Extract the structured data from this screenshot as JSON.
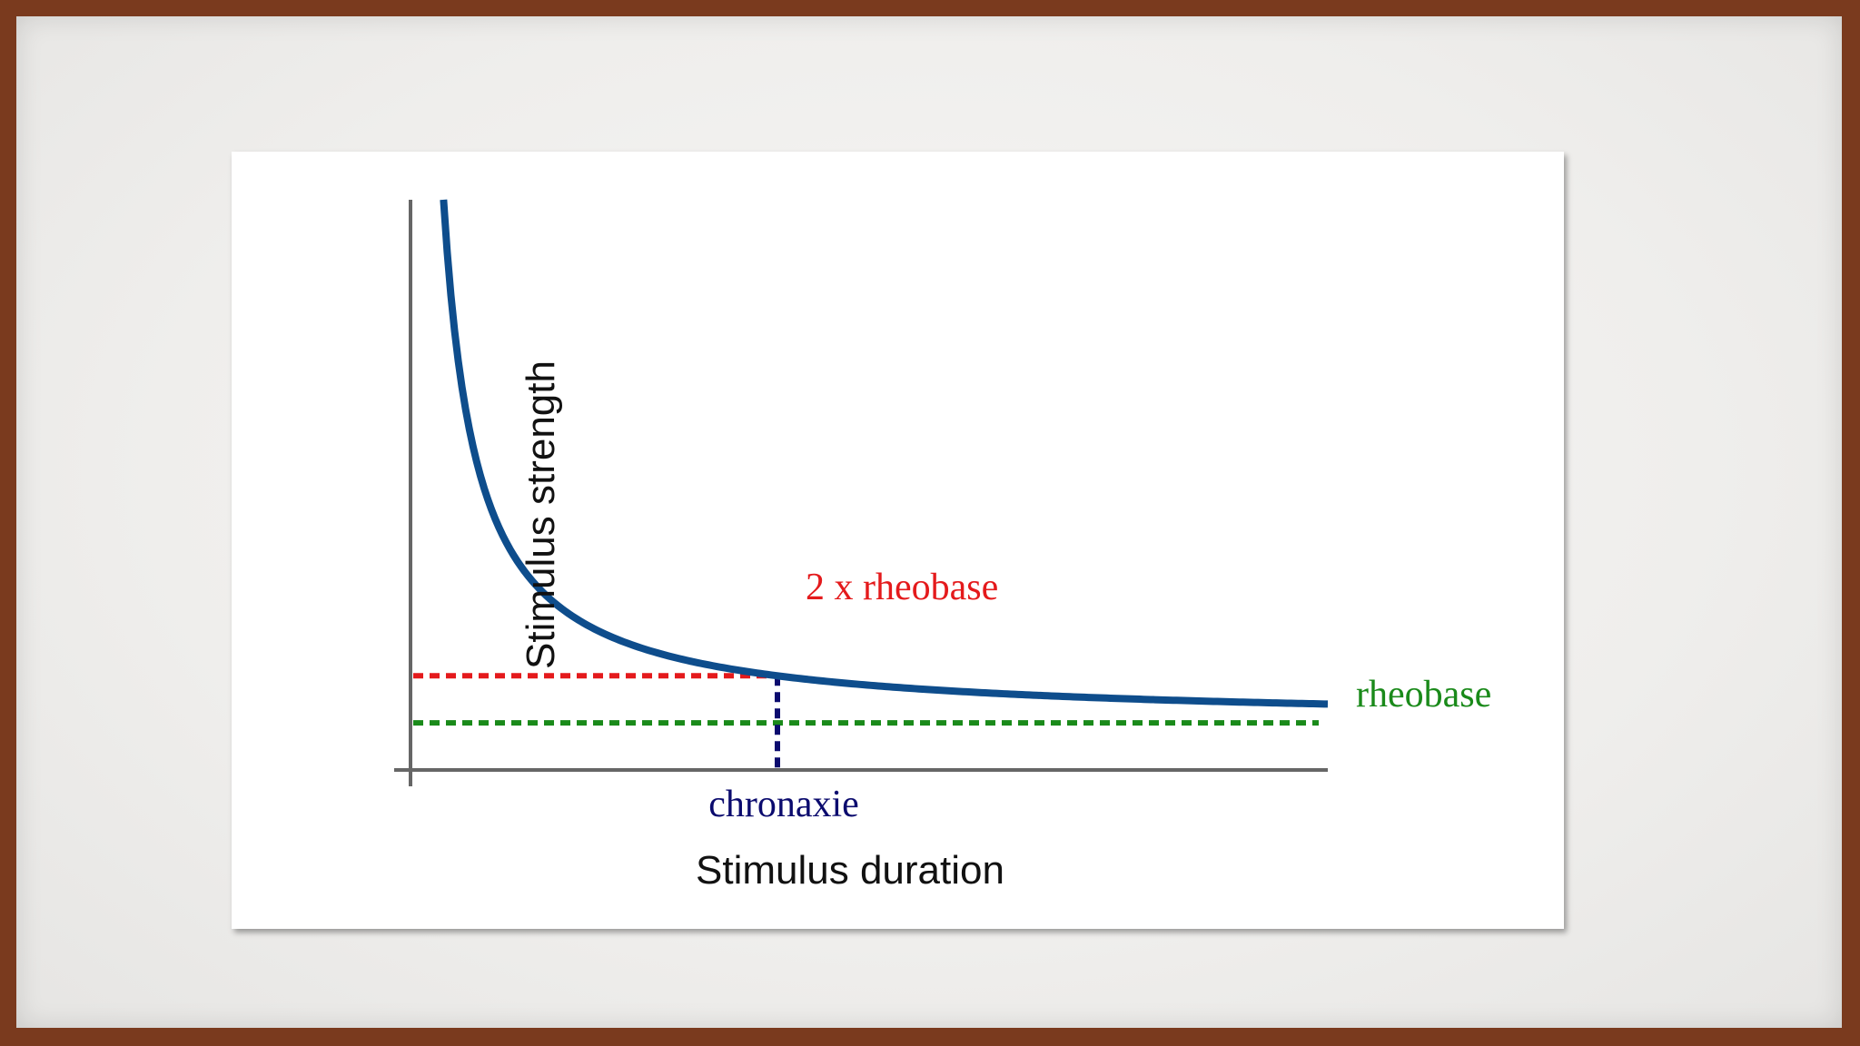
{
  "chart_data": {
    "type": "line",
    "ylabel": "Stimulus strength",
    "xlabel": "Stimulus duration",
    "x_ticks_shown": false,
    "y_ticks_shown": false,
    "grid": false,
    "curve": {
      "name": "strength-duration curve",
      "color": "#0e4d8c",
      "x": [
        0.09,
        0.15,
        0.25,
        0.35,
        0.5,
        0.7,
        1.0,
        1.3,
        1.6,
        2.0,
        2.5
      ],
      "y": [
        12.11,
        7.67,
        5.0,
        3.86,
        3.0,
        2.43,
        2.0,
        1.77,
        1.63,
        1.5,
        1.4
      ]
    },
    "reference_lines": [
      {
        "name": "rheobase",
        "label": "rheobase",
        "type": "horizontal",
        "value": 1.0,
        "color": "#1a8a1a"
      },
      {
        "name": "2x-rheobase",
        "label": "2 x rheobase",
        "type": "horizontal",
        "value": 2.0,
        "color": "#e41a1c"
      },
      {
        "name": "chronaxie",
        "label": "chronaxie",
        "type": "vertical",
        "value": 1.0,
        "color": "#0b0b6e"
      }
    ],
    "xlim": [
      0,
      2.5
    ],
    "ylim": [
      0,
      12.11
    ]
  }
}
